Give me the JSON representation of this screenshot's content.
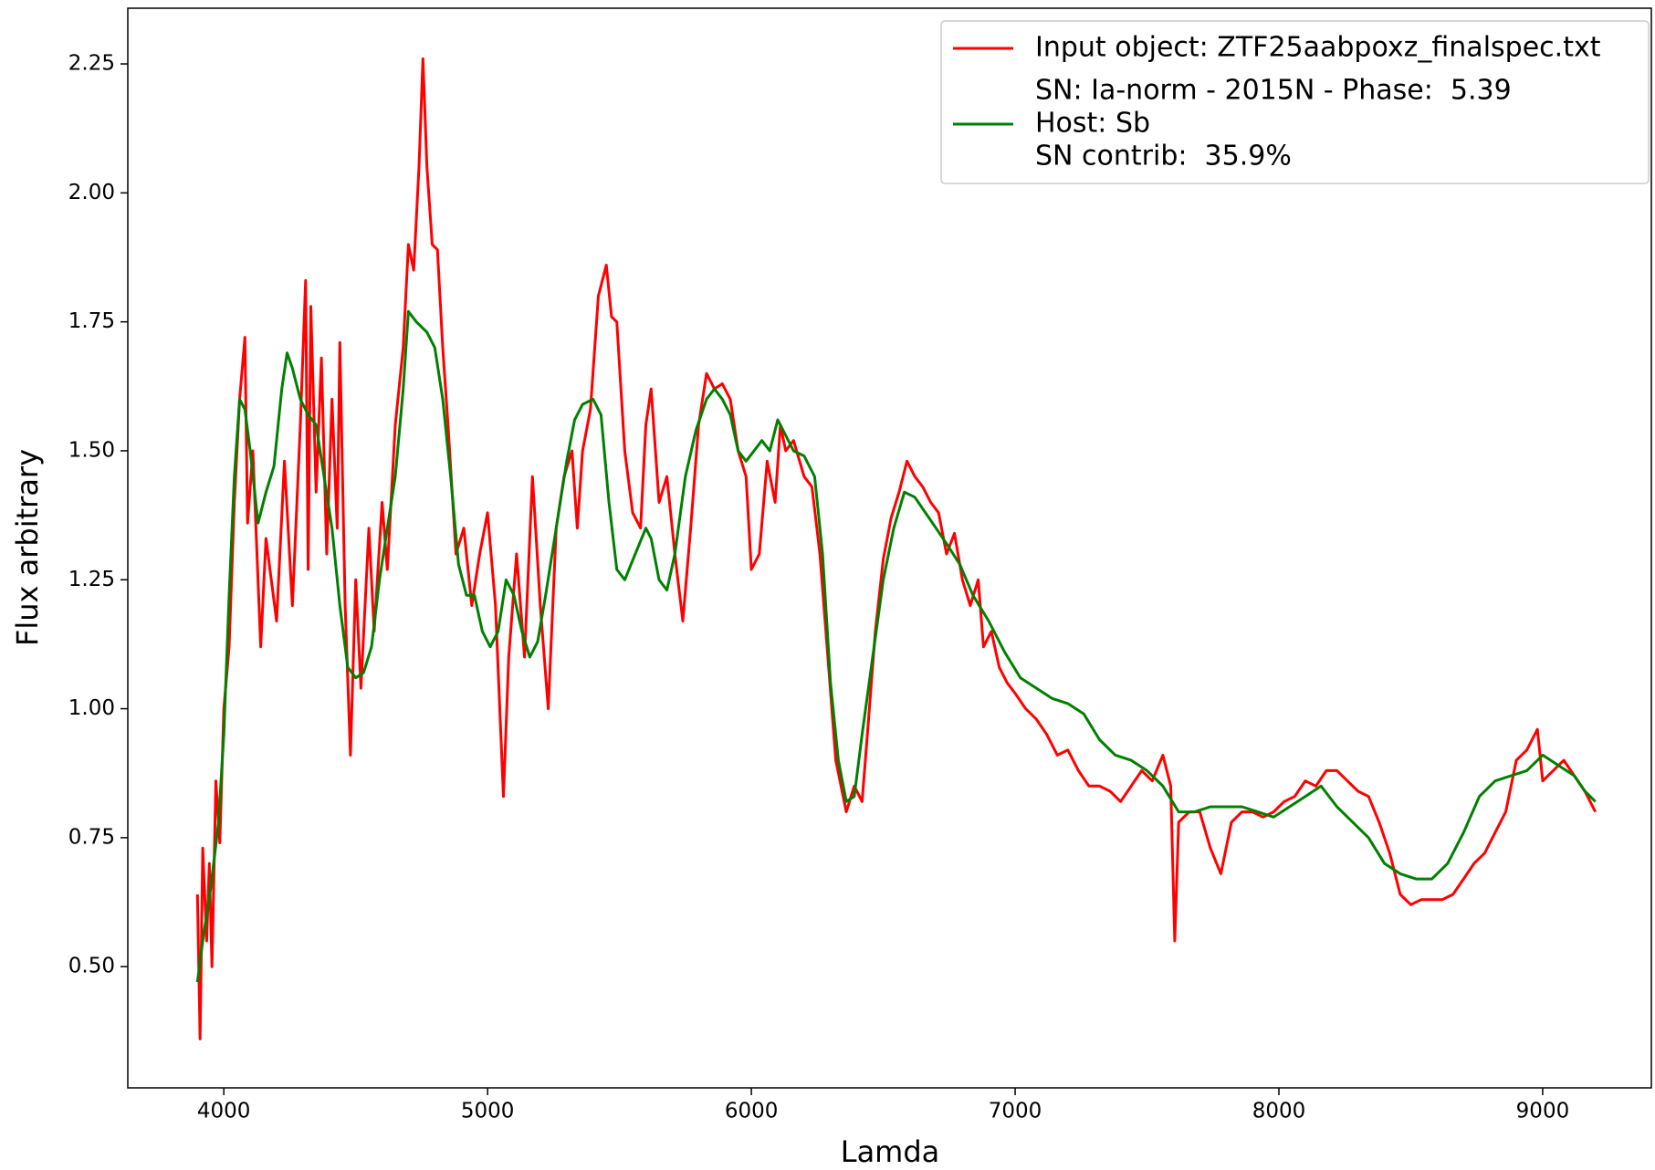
{
  "chart_data": {
    "type": "line",
    "xlabel": "Lamda",
    "ylabel": "Flux arbitrary",
    "xlim": [
      3636,
      9412
    ],
    "ylim": [
      0.265,
      2.358
    ],
    "xticks": [
      4000,
      5000,
      6000,
      7000,
      8000,
      9000
    ],
    "yticks": [
      {
        "value": 0.5,
        "label": "0.50"
      },
      0.75,
      {
        "value": 1.0,
        "label": "1.00"
      },
      1.25,
      {
        "value": 1.5,
        "label": "1.50"
      },
      1.75,
      {
        "value": 2.0,
        "label": "2.00"
      },
      2.25
    ],
    "legend": "upper right",
    "legend_notes": [
      "SN: Ia-norm - 2015N - Phase:  5.39",
      "SN contrib:  35.9%"
    ],
    "series": [
      {
        "name": "Input object: ZTF25aabpoxz_finalspec.txt",
        "color": "#ff0000",
        "x": [
          3900,
          3910,
          3920,
          3935,
          3945,
          3955,
          3970,
          3985,
          4000,
          4020,
          4040,
          4060,
          4080,
          4090,
          4110,
          4140,
          4160,
          4180,
          4200,
          4230,
          4260,
          4290,
          4310,
          4320,
          4330,
          4350,
          4370,
          4390,
          4410,
          4430,
          4440,
          4460,
          4480,
          4500,
          4520,
          4550,
          4570,
          4600,
          4620,
          4650,
          4680,
          4700,
          4720,
          4740,
          4755,
          4770,
          4790,
          4810,
          4830,
          4850,
          4880,
          4910,
          4940,
          4970,
          5000,
          5030,
          5060,
          5080,
          5110,
          5140,
          5170,
          5200,
          5230,
          5260,
          5290,
          5320,
          5340,
          5360,
          5390,
          5420,
          5450,
          5470,
          5490,
          5520,
          5550,
          5580,
          5600,
          5620,
          5650,
          5680,
          5710,
          5740,
          5770,
          5800,
          5830,
          5860,
          5890,
          5920,
          5950,
          5980,
          6000,
          6030,
          6060,
          6090,
          6110,
          6130,
          6160,
          6200,
          6230,
          6260,
          6290,
          6320,
          6360,
          6390,
          6420,
          6440,
          6470,
          6500,
          6530,
          6560,
          6590,
          6620,
          6650,
          6680,
          6710,
          6740,
          6770,
          6800,
          6830,
          6860,
          6880,
          6910,
          6940,
          6970,
          7000,
          7040,
          7080,
          7120,
          7160,
          7200,
          7240,
          7280,
          7320,
          7360,
          7400,
          7440,
          7480,
          7520,
          7560,
          7590,
          7605,
          7620,
          7660,
          7700,
          7740,
          7780,
          7820,
          7860,
          7900,
          7940,
          7980,
          8020,
          8060,
          8100,
          8140,
          8180,
          8220,
          8260,
          8300,
          8340,
          8380,
          8420,
          8460,
          8500,
          8540,
          8580,
          8620,
          8660,
          8700,
          8740,
          8780,
          8820,
          8860,
          8900,
          8940,
          8980,
          9000,
          9040,
          9080,
          9120,
          9160,
          9200
        ],
        "values": [
          0.64,
          0.36,
          0.73,
          0.55,
          0.7,
          0.5,
          0.86,
          0.74,
          1.0,
          1.12,
          1.4,
          1.6,
          1.72,
          1.36,
          1.5,
          1.12,
          1.33,
          1.25,
          1.17,
          1.48,
          1.2,
          1.55,
          1.83,
          1.27,
          1.78,
          1.42,
          1.68,
          1.3,
          1.6,
          1.35,
          1.71,
          1.2,
          0.91,
          1.25,
          1.04,
          1.35,
          1.15,
          1.4,
          1.27,
          1.55,
          1.7,
          1.9,
          1.85,
          2.05,
          2.26,
          2.05,
          1.9,
          1.89,
          1.7,
          1.55,
          1.3,
          1.35,
          1.2,
          1.3,
          1.38,
          1.2,
          0.83,
          1.1,
          1.3,
          1.1,
          1.45,
          1.2,
          1.0,
          1.35,
          1.45,
          1.5,
          1.35,
          1.5,
          1.58,
          1.8,
          1.86,
          1.76,
          1.75,
          1.5,
          1.38,
          1.35,
          1.55,
          1.62,
          1.4,
          1.45,
          1.3,
          1.17,
          1.35,
          1.55,
          1.65,
          1.62,
          1.63,
          1.6,
          1.5,
          1.45,
          1.27,
          1.3,
          1.48,
          1.4,
          1.55,
          1.5,
          1.52,
          1.45,
          1.43,
          1.3,
          1.1,
          0.9,
          0.8,
          0.85,
          0.82,
          0.95,
          1.15,
          1.29,
          1.37,
          1.42,
          1.48,
          1.45,
          1.43,
          1.4,
          1.38,
          1.3,
          1.34,
          1.25,
          1.2,
          1.25,
          1.12,
          1.15,
          1.08,
          1.05,
          1.03,
          1.0,
          0.98,
          0.95,
          0.91,
          0.92,
          0.88,
          0.85,
          0.85,
          0.84,
          0.82,
          0.85,
          0.88,
          0.86,
          0.91,
          0.85,
          0.55,
          0.78,
          0.8,
          0.8,
          0.73,
          0.68,
          0.78,
          0.8,
          0.8,
          0.79,
          0.8,
          0.82,
          0.83,
          0.86,
          0.85,
          0.88,
          0.88,
          0.86,
          0.84,
          0.83,
          0.78,
          0.72,
          0.64,
          0.62,
          0.63,
          0.63,
          0.63,
          0.64,
          0.67,
          0.7,
          0.72,
          0.76,
          0.8,
          0.9,
          0.92,
          0.96,
          0.86,
          0.88,
          0.9,
          0.87,
          0.84,
          0.8
        ]
      },
      {
        "name": "Host: Sb",
        "color": "#008000",
        "x": [
          3900,
          3920,
          3950,
          3980,
          4000,
          4020,
          4040,
          4060,
          4080,
          4100,
          4130,
          4160,
          4190,
          4220,
          4240,
          4260,
          4290,
          4320,
          4350,
          4380,
          4410,
          4440,
          4470,
          4500,
          4530,
          4560,
          4590,
          4620,
          4650,
          4680,
          4700,
          4730,
          4770,
          4800,
          4830,
          4860,
          4890,
          4920,
          4950,
          4980,
          5010,
          5040,
          5070,
          5100,
          5130,
          5160,
          5190,
          5220,
          5260,
          5300,
          5330,
          5360,
          5400,
          5430,
          5460,
          5490,
          5520,
          5560,
          5600,
          5620,
          5650,
          5680,
          5710,
          5750,
          5790,
          5830,
          5860,
          5890,
          5920,
          5950,
          5980,
          6010,
          6040,
          6070,
          6100,
          6130,
          6160,
          6200,
          6240,
          6270,
          6300,
          6330,
          6360,
          6390,
          6420,
          6460,
          6500,
          6540,
          6580,
          6620,
          6660,
          6700,
          6740,
          6790,
          6840,
          6900,
          6960,
          7020,
          7080,
          7140,
          7200,
          7260,
          7320,
          7380,
          7440,
          7500,
          7560,
          7620,
          7680,
          7740,
          7800,
          7860,
          7920,
          7980,
          8040,
          8100,
          8160,
          8220,
          8280,
          8340,
          8400,
          8460,
          8520,
          8580,
          8640,
          8700,
          8760,
          8820,
          8880,
          8940,
          9000,
          9060,
          9120,
          9160,
          9200
        ],
        "values": [
          0.47,
          0.55,
          0.65,
          0.78,
          0.95,
          1.22,
          1.45,
          1.6,
          1.58,
          1.5,
          1.36,
          1.42,
          1.47,
          1.62,
          1.69,
          1.66,
          1.6,
          1.57,
          1.55,
          1.45,
          1.35,
          1.2,
          1.08,
          1.06,
          1.07,
          1.12,
          1.25,
          1.35,
          1.45,
          1.62,
          1.77,
          1.75,
          1.73,
          1.7,
          1.6,
          1.45,
          1.28,
          1.22,
          1.22,
          1.15,
          1.12,
          1.15,
          1.25,
          1.22,
          1.15,
          1.1,
          1.13,
          1.22,
          1.35,
          1.48,
          1.56,
          1.59,
          1.6,
          1.57,
          1.4,
          1.27,
          1.25,
          1.3,
          1.35,
          1.33,
          1.25,
          1.23,
          1.3,
          1.45,
          1.54,
          1.6,
          1.62,
          1.6,
          1.57,
          1.5,
          1.48,
          1.5,
          1.52,
          1.5,
          1.56,
          1.53,
          1.5,
          1.49,
          1.45,
          1.3,
          1.05,
          0.9,
          0.82,
          0.83,
          0.95,
          1.1,
          1.25,
          1.35,
          1.42,
          1.41,
          1.38,
          1.35,
          1.32,
          1.28,
          1.22,
          1.17,
          1.11,
          1.06,
          1.04,
          1.02,
          1.01,
          0.99,
          0.94,
          0.91,
          0.9,
          0.88,
          0.85,
          0.8,
          0.8,
          0.81,
          0.81,
          0.81,
          0.8,
          0.79,
          0.81,
          0.83,
          0.85,
          0.81,
          0.78,
          0.75,
          0.7,
          0.68,
          0.67,
          0.67,
          0.7,
          0.76,
          0.83,
          0.86,
          0.87,
          0.88,
          0.91,
          0.89,
          0.87,
          0.84,
          0.82
        ]
      }
    ]
  }
}
